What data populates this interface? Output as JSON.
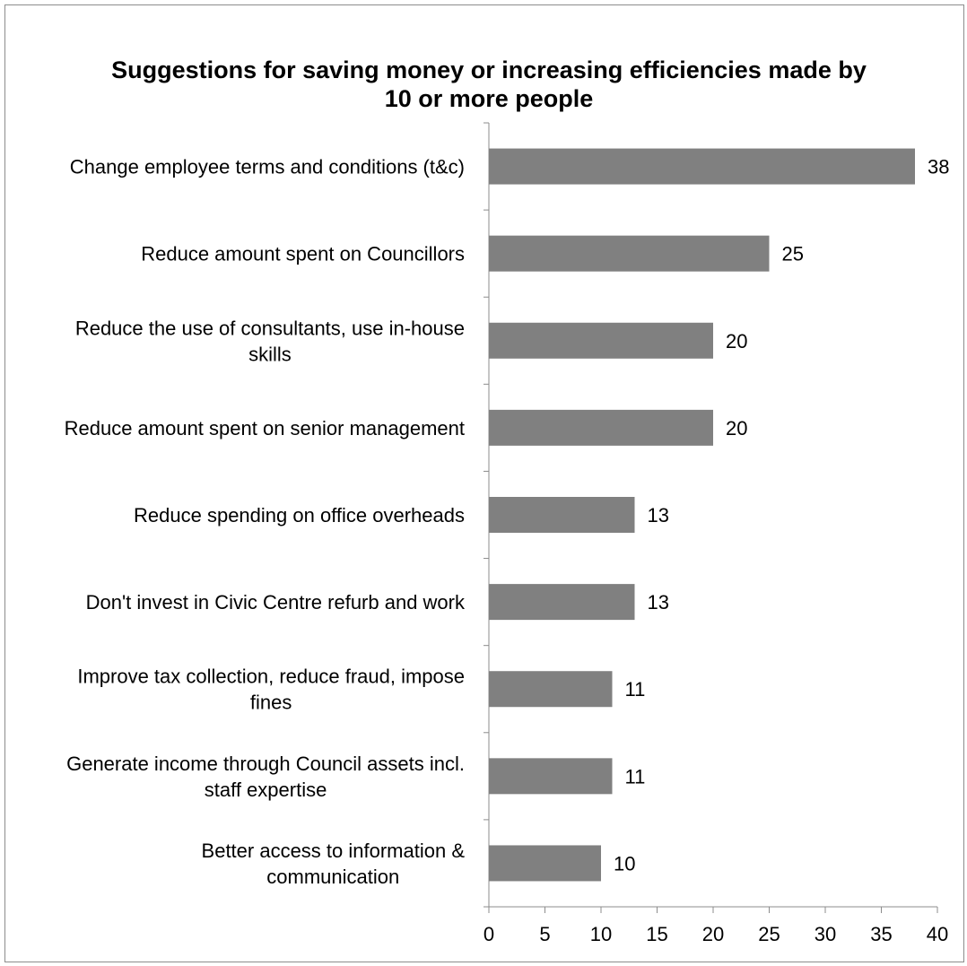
{
  "chart_data": {
    "type": "bar",
    "orientation": "horizontal",
    "title": "Suggestions for saving money or increasing efficiencies made by 10 or more people",
    "title_lines": [
      "Suggestions for saving money or increasing efficiencies made by",
      "10 or more people"
    ],
    "categories": [
      "Change employee terms and conditions (t&c)",
      "Reduce amount spent on Councillors",
      "Reduce the use of consultants, use in-house skills",
      "Reduce amount spent on senior management",
      "Reduce spending on office overheads",
      "Don't invest in Civic Centre refurb and work",
      "Improve tax collection, reduce fraud, impose fines",
      "Generate income through Council assets incl. staff expertise",
      "Better access to information & communication"
    ],
    "category_lines": [
      [
        "Change employee terms and conditions (t&c)"
      ],
      [
        "Reduce amount spent on Councillors"
      ],
      [
        "Reduce the use of consultants, use in-house",
        "skills"
      ],
      [
        "Reduce amount spent on senior management"
      ],
      [
        "Reduce spending on office overheads"
      ],
      [
        "Don't invest in Civic Centre refurb and work"
      ],
      [
        "Improve tax collection, reduce fraud, impose",
        "fines"
      ],
      [
        "Generate income through Council assets incl.",
        "staff expertise"
      ],
      [
        "Better access to information &",
        "communication"
      ]
    ],
    "values": [
      38,
      25,
      20,
      20,
      13,
      13,
      11,
      11,
      10
    ],
    "xlim": [
      0,
      40
    ],
    "xticks": [
      0,
      5,
      10,
      15,
      20,
      25,
      30,
      35,
      40
    ],
    "xlabel": "",
    "ylabel": "",
    "grid": false,
    "legend": "none",
    "bar_color": "#808080",
    "axis_color": "#8c8c8c"
  }
}
